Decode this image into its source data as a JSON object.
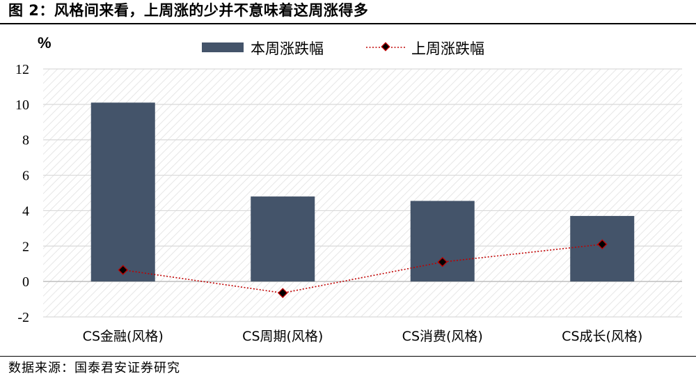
{
  "figure": {
    "title": "图 2：风格间来看，上周涨的少并不意味着这周涨得多",
    "source": "数据来源：国泰君安证券研究"
  },
  "chart_data": {
    "type": "bar",
    "unit_label": "%",
    "categories": [
      "CS金融(风格)",
      "CS周期(风格)",
      "CS消费(风格)",
      "CS成长(风格)"
    ],
    "series": [
      {
        "name": "本周涨跌幅",
        "type": "bar",
        "color": "#44546a",
        "values": [
          10.1,
          4.8,
          4.55,
          3.7
        ]
      },
      {
        "name": "上周涨跌幅",
        "type": "line",
        "color": "#c00000",
        "line_style": "dotted",
        "marker": "diamond",
        "marker_fill": "#000000",
        "values": [
          0.65,
          -0.65,
          1.1,
          2.1
        ]
      }
    ],
    "ylim": [
      -2,
      12
    ],
    "yticks": [
      -2,
      0,
      2,
      4,
      6,
      8,
      10,
      12
    ],
    "grid": true,
    "plot_background": "hatched",
    "legend_position": "top-center"
  }
}
